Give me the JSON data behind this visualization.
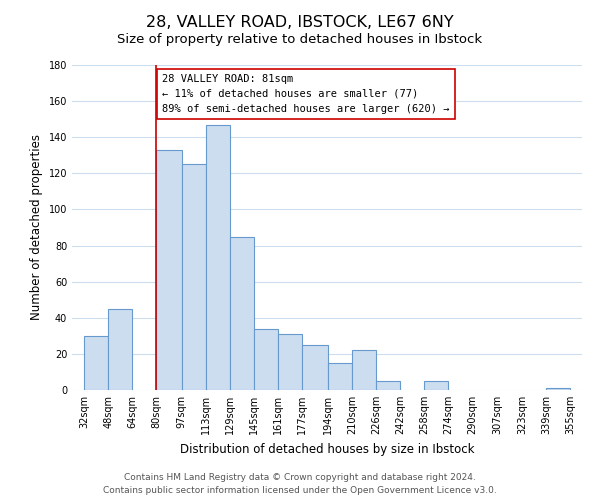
{
  "title": "28, VALLEY ROAD, IBSTOCK, LE67 6NY",
  "subtitle": "Size of property relative to detached houses in Ibstock",
  "xlabel": "Distribution of detached houses by size in Ibstock",
  "ylabel": "Number of detached properties",
  "bar_left_edges": [
    32,
    48,
    64,
    80,
    97,
    113,
    129,
    145,
    161,
    177,
    194,
    210,
    226,
    242,
    258,
    274,
    290,
    307,
    323,
    339
  ],
  "bar_heights": [
    30,
    45,
    0,
    133,
    125,
    147,
    85,
    34,
    31,
    25,
    15,
    22,
    5,
    0,
    5,
    0,
    0,
    0,
    0,
    1
  ],
  "bar_widths": [
    16,
    16,
    16,
    17,
    16,
    16,
    16,
    16,
    16,
    17,
    16,
    16,
    16,
    16,
    16,
    16,
    17,
    16,
    16,
    16
  ],
  "bar_color": "#ccddf0",
  "bar_edge_color": "#6699cc",
  "bar_edge_width": 0.8,
  "x_tick_labels": [
    "32sqm",
    "48sqm",
    "64sqm",
    "80sqm",
    "97sqm",
    "113sqm",
    "129sqm",
    "145sqm",
    "161sqm",
    "177sqm",
    "194sqm",
    "210sqm",
    "226sqm",
    "242sqm",
    "258sqm",
    "274sqm",
    "290sqm",
    "307sqm",
    "323sqm",
    "339sqm",
    "355sqm"
  ],
  "x_tick_positions": [
    32,
    48,
    64,
    80,
    97,
    113,
    129,
    145,
    161,
    177,
    194,
    210,
    226,
    242,
    258,
    274,
    290,
    307,
    323,
    339,
    355
  ],
  "ylim": [
    0,
    180
  ],
  "xlim": [
    24,
    363
  ],
  "property_line_x": 80,
  "property_line_color": "#cc0000",
  "annotation_title": "28 VALLEY ROAD: 81sqm",
  "annotation_line1": "← 11% of detached houses are smaller (77)",
  "annotation_line2": "89% of semi-detached houses are larger (620) →",
  "footer_line1": "Contains HM Land Registry data © Crown copyright and database right 2024.",
  "footer_line2": "Contains public sector information licensed under the Open Government Licence v3.0.",
  "background_color": "#ffffff",
  "grid_color": "#ccddee",
  "title_fontsize": 11.5,
  "subtitle_fontsize": 9.5,
  "axis_label_fontsize": 8.5,
  "tick_fontsize": 7,
  "footer_fontsize": 6.5,
  "annotation_fontsize": 7.5
}
